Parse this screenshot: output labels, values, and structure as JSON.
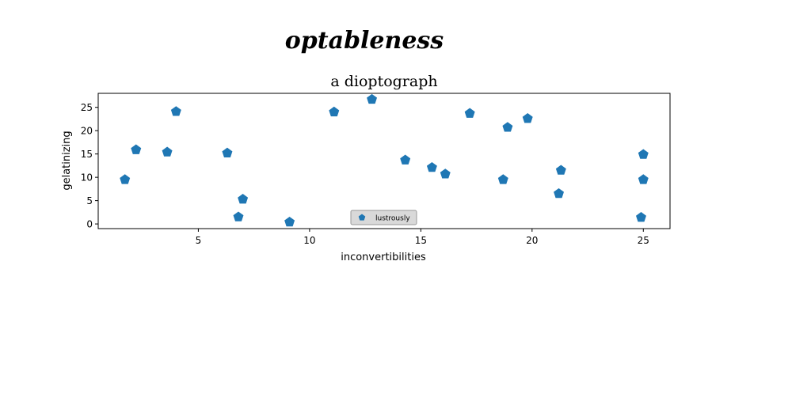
{
  "chart_data": {
    "type": "scatter",
    "suptitle": "optableness",
    "title": "a dioptograph",
    "xlabel": "inconvertibilities",
    "ylabel": "gelatinizing",
    "xlim": [
      0.5,
      26.2
    ],
    "ylim": [
      -1,
      28
    ],
    "xticks": [
      5,
      10,
      15,
      20,
      25
    ],
    "yticks": [
      0,
      5,
      10,
      15,
      20,
      25
    ],
    "grid": false,
    "legend_position": "lower center",
    "marker": "pentagon",
    "series": [
      {
        "name": "lustrously",
        "color": "#1f77b4",
        "points": [
          {
            "x": 1.7,
            "y": 9.5
          },
          {
            "x": 2.2,
            "y": 15.9
          },
          {
            "x": 3.6,
            "y": 15.4
          },
          {
            "x": 4.0,
            "y": 24.1
          },
          {
            "x": 6.3,
            "y": 15.2
          },
          {
            "x": 6.8,
            "y": 1.5
          },
          {
            "x": 7.0,
            "y": 5.3
          },
          {
            "x": 9.1,
            "y": 0.4
          },
          {
            "x": 11.1,
            "y": 24.0
          },
          {
            "x": 12.8,
            "y": 26.7
          },
          {
            "x": 14.3,
            "y": 13.7
          },
          {
            "x": 15.5,
            "y": 12.1
          },
          {
            "x": 16.1,
            "y": 10.7
          },
          {
            "x": 17.2,
            "y": 23.7
          },
          {
            "x": 18.7,
            "y": 9.5
          },
          {
            "x": 18.9,
            "y": 20.7
          },
          {
            "x": 19.8,
            "y": 22.6
          },
          {
            "x": 21.2,
            "y": 6.5
          },
          {
            "x": 21.3,
            "y": 11.5
          },
          {
            "x": 24.9,
            "y": 1.4
          },
          {
            "x": 25.0,
            "y": 14.9
          },
          {
            "x": 25.0,
            "y": 9.5
          }
        ]
      }
    ]
  }
}
